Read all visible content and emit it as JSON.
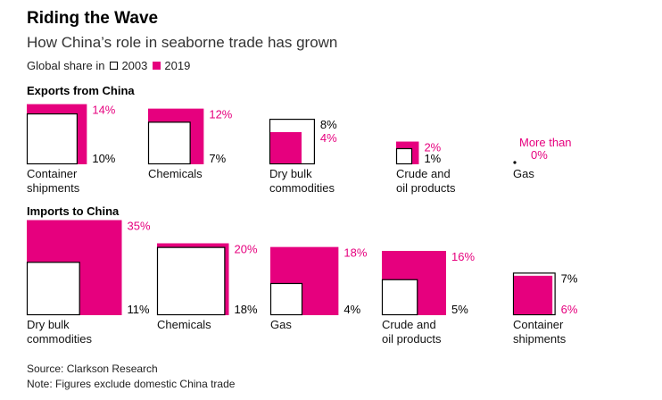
{
  "title": "Riding the Wave",
  "subtitle": "How China’s role in seaborne trade has grown",
  "legend": {
    "prefix": "Global share in",
    "y2003": "2003",
    "y2019": "2019"
  },
  "colors": {
    "y2019": "#e6007e",
    "y2003": "#000000"
  },
  "source": "Source: Clarkson Research",
  "note": "Note: Figures exclude domestic China trade",
  "chart_data": {
    "type": "area",
    "encoding": "nested squares, area proportional to share",
    "series": [
      {
        "name": "2003"
      },
      {
        "name": "2019"
      }
    ],
    "panels": [
      {
        "title": "Exports from China",
        "items": [
          {
            "category": [
              "Container",
              "shipments"
            ],
            "v2003": 10,
            "v2019": 14,
            "label2003": "10%",
            "label2019": "14%"
          },
          {
            "category": [
              "Chemicals"
            ],
            "v2003": 7,
            "v2019": 12,
            "label2003": "7%",
            "label2019": "12%"
          },
          {
            "category": [
              "Dry bulk",
              "commodities"
            ],
            "v2003": 8,
            "v2019": 4,
            "label2003": "8%",
            "label2019": "4%"
          },
          {
            "category": [
              "Crude and",
              "oil products"
            ],
            "v2003": 1,
            "v2019": 2,
            "label2003": "1%",
            "label2019": "2%"
          },
          {
            "category": [
              "Gas"
            ],
            "v2003": 0,
            "v2019": 0,
            "label2019": [
              "More than",
              "0%"
            ]
          }
        ]
      },
      {
        "title": "Imports to China",
        "items": [
          {
            "category": [
              "Dry bulk",
              "commodities"
            ],
            "v2003": 11,
            "v2019": 35,
            "label2003": "11%",
            "label2019": "35%"
          },
          {
            "category": [
              "Chemicals"
            ],
            "v2003": 18,
            "v2019": 20,
            "label2003": "18%",
            "label2019": "20%"
          },
          {
            "category": [
              "Gas"
            ],
            "v2003": 4,
            "v2019": 18,
            "label2003": "4%",
            "label2019": "18%"
          },
          {
            "category": [
              "Crude and",
              "oil products"
            ],
            "v2003": 5,
            "v2019": 16,
            "label2003": "5%",
            "label2019": "16%"
          },
          {
            "category": [
              "Container",
              "shipments"
            ],
            "v2003": 7,
            "v2019": 6,
            "label2003": "7%",
            "label2019": "6%"
          }
        ]
      }
    ]
  }
}
